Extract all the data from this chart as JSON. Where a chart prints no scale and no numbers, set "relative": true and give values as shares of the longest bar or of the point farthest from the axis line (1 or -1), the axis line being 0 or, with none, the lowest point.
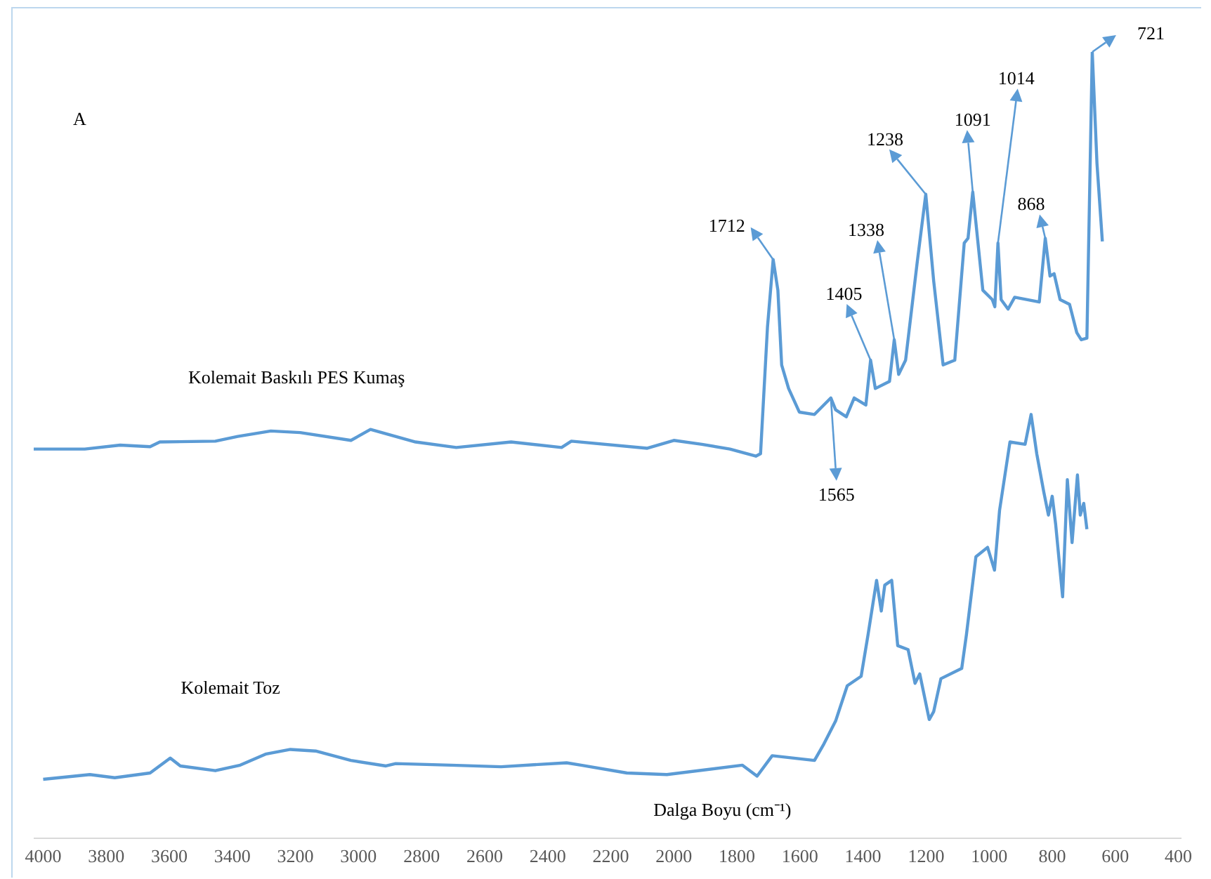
{
  "chart_data": {
    "type": "line",
    "xlabel": "Dalga Boyu (cm⁻¹)",
    "relative": true,
    "marker": "none",
    "line_style": "solid",
    "xlim": [
      4030,
      390
    ],
    "xticks": [
      4000,
      3800,
      3600,
      3400,
      3200,
      3000,
      2800,
      2600,
      2400,
      2200,
      2000,
      1800,
      1600,
      1400,
      1200,
      1000,
      800,
      600,
      400
    ],
    "annotations": [
      "A",
      {
        "text": "1712",
        "x": 1685,
        "y": 0.736
      },
      {
        "text": "1565",
        "x": 1502,
        "y": 0.56
      },
      {
        "text": "1405",
        "x": 1376,
        "y": 0.608
      },
      {
        "text": "1338",
        "x": 1301,
        "y": 0.634
      },
      {
        "text": "1238",
        "x": 1201,
        "y": 0.819
      },
      {
        "text": "1091",
        "x": 1052,
        "y": 0.822
      },
      {
        "text": "1014",
        "x": 972,
        "y": 0.757
      },
      {
        "text": "868",
        "x": 822,
        "y": 0.763
      },
      {
        "text": "721",
        "x": 673,
        "y": 1
      }
    ],
    "series": [
      {
        "name": "Kolemait Baskılı PES Kumaş",
        "color": "#5b9bd5",
        "x": [
          4030,
          3868,
          3756,
          3661,
          3630,
          3454,
          3383,
          3278,
          3185,
          3024,
          2962,
          2819,
          2690,
          2516,
          2356,
          2325,
          2084,
          2000,
          1911,
          1822,
          1740,
          1725,
          1703,
          1685,
          1670,
          1658,
          1636,
          1602,
          1554,
          1502,
          1487,
          1453,
          1428,
          1391,
          1376,
          1361,
          1316,
          1301,
          1287,
          1265,
          1228,
          1201,
          1176,
          1146,
          1109,
          1079,
          1067,
          1052,
          1020,
          990,
          982,
          972,
          962,
          940,
          919,
          841,
          822,
          807,
          794,
          775,
          745,
          722,
          708,
          690,
          673,
          658,
          641
        ],
        "values": [
          0.495,
          0.495,
          0.5,
          0.498,
          0.504,
          0.505,
          0.511,
          0.518,
          0.516,
          0.506,
          0.52,
          0.504,
          0.497,
          0.504,
          0.497,
          0.505,
          0.496,
          0.506,
          0.501,
          0.495,
          0.486,
          0.489,
          0.65,
          0.736,
          0.697,
          0.602,
          0.572,
          0.542,
          0.539,
          0.56,
          0.545,
          0.536,
          0.56,
          0.551,
          0.608,
          0.572,
          0.581,
          0.634,
          0.59,
          0.608,
          0.733,
          0.819,
          0.709,
          0.602,
          0.608,
          0.757,
          0.763,
          0.822,
          0.697,
          0.685,
          0.676,
          0.757,
          0.685,
          0.673,
          0.688,
          0.682,
          0.763,
          0.715,
          0.718,
          0.685,
          0.679,
          0.643,
          0.634,
          0.636,
          1,
          0.858,
          0.759
        ]
      },
      {
        "name": "Kolemait Toz",
        "color": "#5b9bd5",
        "x": [
          4000,
          3852,
          3773,
          3661,
          3597,
          3565,
          3454,
          3375,
          3295,
          3216,
          3136,
          3024,
          2913,
          2882,
          2706,
          2548,
          2340,
          2294,
          2149,
          2022,
          1783,
          1736,
          1688,
          1554,
          1524,
          1487,
          1450,
          1406,
          1384,
          1357,
          1342,
          1331,
          1309,
          1290,
          1257,
          1235,
          1220,
          1190,
          1176,
          1153,
          1087,
          1072,
          1042,
          1005,
          983,
          967,
          934,
          886,
          867,
          849,
          827,
          812,
          800,
          789,
          767,
          752,
          737,
          720,
          711,
          700,
          690
        ],
        "values": [
          0.075,
          0.081,
          0.077,
          0.083,
          0.102,
          0.092,
          0.086,
          0.093,
          0.107,
          0.113,
          0.111,
          0.099,
          0.092,
          0.095,
          0.093,
          0.091,
          0.096,
          0.093,
          0.083,
          0.081,
          0.093,
          0.079,
          0.105,
          0.099,
          0.12,
          0.149,
          0.194,
          0.206,
          0.259,
          0.328,
          0.289,
          0.322,
          0.328,
          0.245,
          0.24,
          0.197,
          0.209,
          0.151,
          0.161,
          0.203,
          0.216,
          0.259,
          0.358,
          0.37,
          0.341,
          0.417,
          0.504,
          0.501,
          0.539,
          0.489,
          0.441,
          0.411,
          0.435,
          0.399,
          0.307,
          0.456,
          0.376,
          0.462,
          0.411,
          0.426,
          0.393
        ]
      }
    ]
  }
}
